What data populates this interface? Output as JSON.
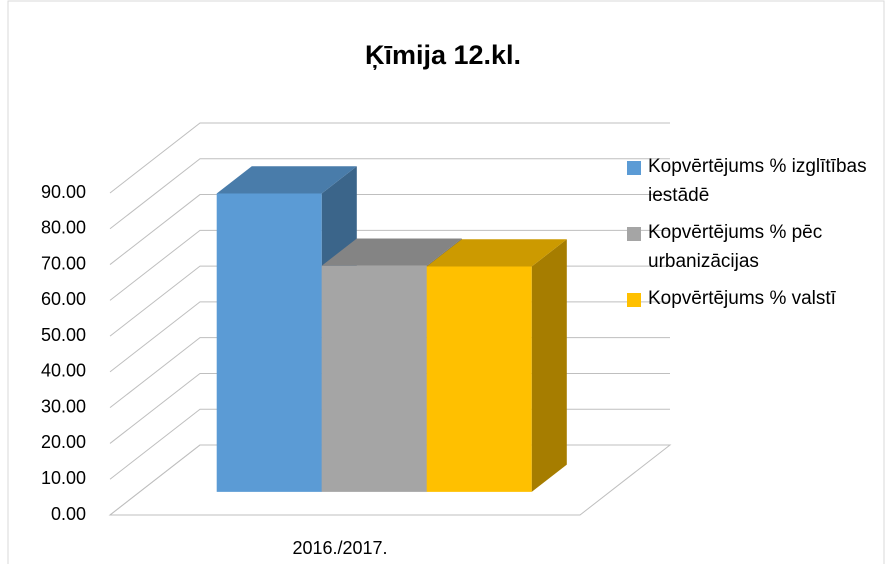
{
  "chart_data": {
    "type": "bar3d",
    "title": "Ķīmija 12.kl.",
    "categories": [
      "2016./2017."
    ],
    "series": [
      {
        "name": "Kopvērtējums % izglītības iestādē",
        "color": "#5b9bd5",
        "values": [
          83.4
        ]
      },
      {
        "name": "Kopvērtējums % pēc urbanizācijas",
        "color": "#a5a5a5",
        "values": [
          63.2
        ]
      },
      {
        "name": "Kopvērtējums % valstī",
        "color": "#ffc000",
        "values": [
          63.0
        ]
      }
    ],
    "ylim": [
      0,
      90
    ],
    "yticks": [
      {
        "value": 0,
        "label": "0.00"
      },
      {
        "value": 10,
        "label": "10.00"
      },
      {
        "value": 20,
        "label": "20.00"
      },
      {
        "value": 30,
        "label": "30.00"
      },
      {
        "value": 40,
        "label": "40.00"
      },
      {
        "value": 50,
        "label": "50.00"
      },
      {
        "value": 60,
        "label": "60.00"
      },
      {
        "value": 70,
        "label": "70.00"
      },
      {
        "value": 80,
        "label": "80.00"
      },
      {
        "value": 90,
        "label": "90.00"
      }
    ],
    "grid": true,
    "legend": "right"
  }
}
